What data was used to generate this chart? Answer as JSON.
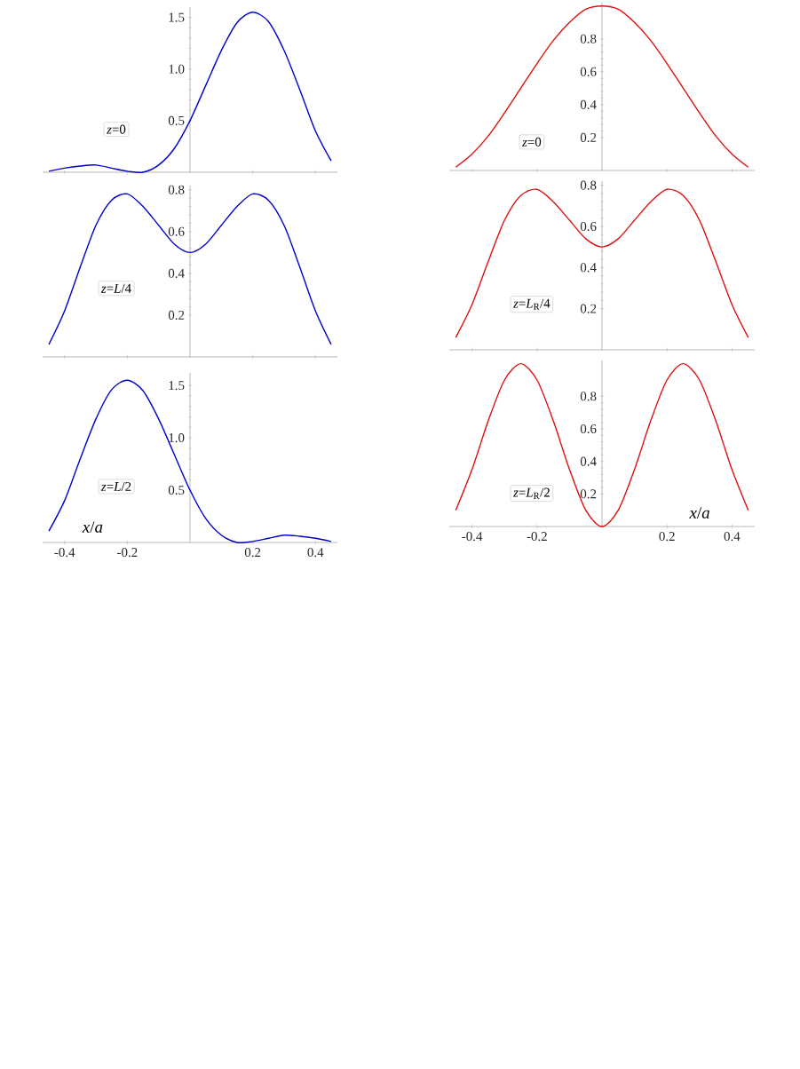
{
  "chart_data": [
    {
      "type": "line",
      "x": [
        -0.45,
        -0.4,
        -0.35,
        -0.3,
        -0.25,
        -0.2,
        -0.15,
        -0.1,
        -0.05,
        0,
        0.05,
        0.1,
        0.15,
        0.2,
        0.25,
        0.3,
        0.35,
        0.4,
        0.45
      ],
      "values": [
        0.01,
        0.04,
        0.06,
        0.07,
        0.04,
        0.01,
        0.0,
        0.07,
        0.23,
        0.5,
        0.84,
        1.18,
        1.45,
        1.55,
        1.46,
        1.18,
        0.8,
        0.4,
        0.11
      ],
      "color": "#0000cc",
      "xlim": [
        -0.47,
        0.47
      ],
      "ylim": [
        0,
        1.6
      ],
      "xticks": [
        -0.4,
        -0.2,
        0.2,
        0.4
      ],
      "yticks": [
        0.5,
        {
          "value": 1,
          "label": "1.0"
        },
        1.5
      ],
      "tick_labels": "y",
      "annotations": [
        "*z*=0"
      ]
    },
    {
      "type": "line",
      "x": [
        -0.45,
        -0.4,
        -0.35,
        -0.3,
        -0.25,
        -0.2,
        -0.15,
        -0.1,
        -0.05,
        0,
        0.05,
        0.1,
        0.15,
        0.2,
        0.25,
        0.3,
        0.35,
        0.4,
        0.45
      ],
      "values": [
        0.02,
        0.1,
        0.21,
        0.35,
        0.5,
        0.65,
        0.79,
        0.9,
        0.98,
        1,
        0.98,
        0.9,
        0.79,
        0.65,
        0.5,
        0.35,
        0.21,
        0.1,
        0.02
      ],
      "color": "#dd1111",
      "xlim": [
        -0.47,
        0.47
      ],
      "ylim": [
        0,
        1.02
      ],
      "xticks": [
        -0.4,
        -0.2,
        0.2,
        0.4
      ],
      "yticks": [
        0.2,
        0.4,
        0.6,
        0.8
      ],
      "tick_labels": "y",
      "annotations": [
        "*z*=0"
      ]
    },
    {
      "type": "line",
      "x": [
        -0.45,
        -0.4,
        -0.35,
        -0.3,
        -0.25,
        -0.2,
        -0.15,
        -0.1,
        -0.05,
        0,
        0.05,
        0.1,
        0.15,
        0.2,
        0.25,
        0.3,
        0.35,
        0.4,
        0.45
      ],
      "values": [
        0.06,
        0.22,
        0.43,
        0.63,
        0.75,
        0.78,
        0.72,
        0.63,
        0.54,
        0.5,
        0.54,
        0.63,
        0.72,
        0.78,
        0.75,
        0.63,
        0.43,
        0.22,
        0.06
      ],
      "color": "#0000cc",
      "xlim": [
        -0.47,
        0.47
      ],
      "ylim": [
        0,
        0.82
      ],
      "xticks": [
        -0.4,
        -0.2,
        0.2,
        0.4
      ],
      "yticks": [
        0.2,
        0.4,
        0.6,
        0.8
      ],
      "tick_labels": "y",
      "annotations": [
        "*z*=*L*/4"
      ]
    },
    {
      "type": "line",
      "x": [
        -0.45,
        -0.4,
        -0.35,
        -0.3,
        -0.25,
        -0.2,
        -0.15,
        -0.1,
        -0.05,
        0,
        0.05,
        0.1,
        0.15,
        0.2,
        0.25,
        0.3,
        0.35,
        0.4,
        0.45
      ],
      "values": [
        0.06,
        0.22,
        0.43,
        0.63,
        0.75,
        0.78,
        0.72,
        0.63,
        0.54,
        0.5,
        0.54,
        0.63,
        0.72,
        0.78,
        0.75,
        0.63,
        0.43,
        0.22,
        0.06
      ],
      "color": "#dd1111",
      "xlim": [
        -0.47,
        0.47
      ],
      "ylim": [
        0,
        0.82
      ],
      "xticks": [
        -0.4,
        -0.2,
        0.2,
        0.4
      ],
      "yticks": [
        0.2,
        0.4,
        0.6,
        0.8
      ],
      "tick_labels": "y",
      "annotations": [
        "*z*=*L*$_{R}$/4"
      ]
    },
    {
      "type": "line",
      "x": [
        -0.45,
        -0.4,
        -0.35,
        -0.3,
        -0.25,
        -0.2,
        -0.15,
        -0.1,
        -0.05,
        0,
        0.05,
        0.1,
        0.15,
        0.2,
        0.25,
        0.3,
        0.35,
        0.4,
        0.45
      ],
      "values": [
        0.11,
        0.4,
        0.8,
        1.18,
        1.46,
        1.55,
        1.45,
        1.18,
        0.84,
        0.5,
        0.23,
        0.07,
        0.0,
        0.01,
        0.04,
        0.07,
        0.06,
        0.04,
        0.01
      ],
      "color": "#0000cc",
      "xlim": [
        -0.47,
        0.47
      ],
      "ylim": [
        0,
        1.62
      ],
      "xticks": [
        -0.4,
        -0.2,
        0.2,
        0.4
      ],
      "yticks": [
        0.5,
        {
          "value": 1,
          "label": "1.0"
        },
        1.5
      ],
      "xlabel": "*x*/*a*",
      "annotations": [
        "*z*=*L*/2"
      ]
    },
    {
      "type": "line",
      "x": [
        -0.45,
        -0.4,
        -0.35,
        -0.3,
        -0.25,
        -0.2,
        -0.15,
        -0.1,
        -0.05,
        0,
        0.05,
        0.1,
        0.15,
        0.2,
        0.25,
        0.3,
        0.35,
        0.4,
        0.45
      ],
      "values": [
        0.1,
        0.35,
        0.65,
        0.9,
        1,
        0.9,
        0.65,
        0.35,
        0.1,
        0,
        0.1,
        0.35,
        0.65,
        0.9,
        1,
        0.9,
        0.65,
        0.35,
        0.1
      ],
      "color": "#dd1111",
      "xlim": [
        -0.47,
        0.47
      ],
      "ylim": [
        0,
        1.02
      ],
      "xticks": [
        -0.4,
        -0.2,
        0.2,
        0.4
      ],
      "yticks": [
        0.2,
        0.4,
        0.6,
        0.8
      ],
      "xlabel": "*x*/*a*",
      "annotations": [
        "*z*=*L*$_{R}$/2"
      ]
    }
  ]
}
